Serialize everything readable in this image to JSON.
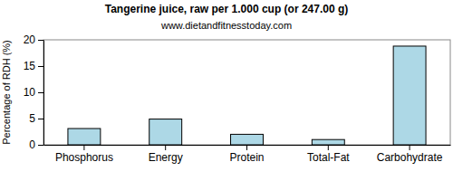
{
  "chart_data": {
    "type": "bar",
    "title": "Tangerine juice, raw per 1.000 cup (or 247.00 g)",
    "subtitle": "www.dietandfitnesstoday.com",
    "y_label": "Percentage of RDH (%)",
    "categories": [
      "Phosphorus",
      "Energy",
      "Protein",
      "Total-Fat",
      "Carbohydrate"
    ],
    "values": [
      3.1,
      4.9,
      2.0,
      1.0,
      18.8
    ],
    "color": "#add8e6",
    "ylim": [
      0,
      20
    ],
    "yticks": [
      0,
      5,
      10,
      15,
      20
    ],
    "grid": false
  }
}
